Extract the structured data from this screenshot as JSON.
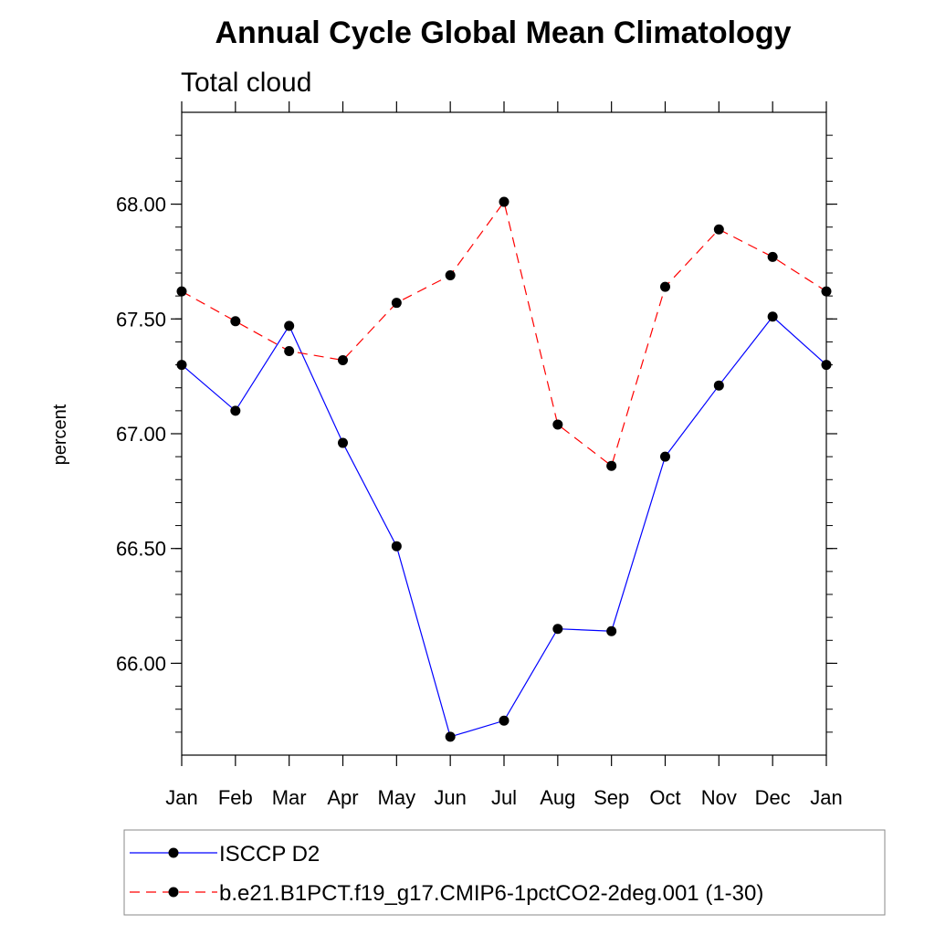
{
  "chart_data": {
    "type": "line",
    "title": "Annual Cycle Global Mean Climatology",
    "subtitle": "Total cloud",
    "xlabel": "",
    "ylabel": "percent",
    "categories": [
      "Jan",
      "Feb",
      "Mar",
      "Apr",
      "May",
      "Jun",
      "Jul",
      "Aug",
      "Sep",
      "Oct",
      "Nov",
      "Dec",
      "Jan"
    ],
    "ylim": [
      65.6,
      68.4
    ],
    "yticks": [
      66.0,
      66.5,
      67.0,
      67.5,
      68.0
    ],
    "ytick_labels": [
      "66.00",
      "66.50",
      "67.00",
      "67.50",
      "68.00"
    ],
    "grid": false,
    "legend_position": "bottom",
    "series": [
      {
        "name": "ISCCP D2",
        "color": "#0000ff",
        "dash": "solid",
        "values": [
          67.3,
          67.1,
          67.47,
          66.96,
          66.51,
          65.68,
          65.75,
          66.15,
          66.14,
          66.9,
          67.21,
          67.51,
          67.3
        ]
      },
      {
        "name": "b.e21.B1PCT.f19_g17.CMIP6-1pctCO2-2deg.001 (1-30)",
        "color": "#ff0000",
        "dash": "dashed",
        "values": [
          67.62,
          67.49,
          67.36,
          67.32,
          67.57,
          67.69,
          68.01,
          67.04,
          66.86,
          67.64,
          67.89,
          67.77,
          67.62
        ]
      }
    ]
  }
}
